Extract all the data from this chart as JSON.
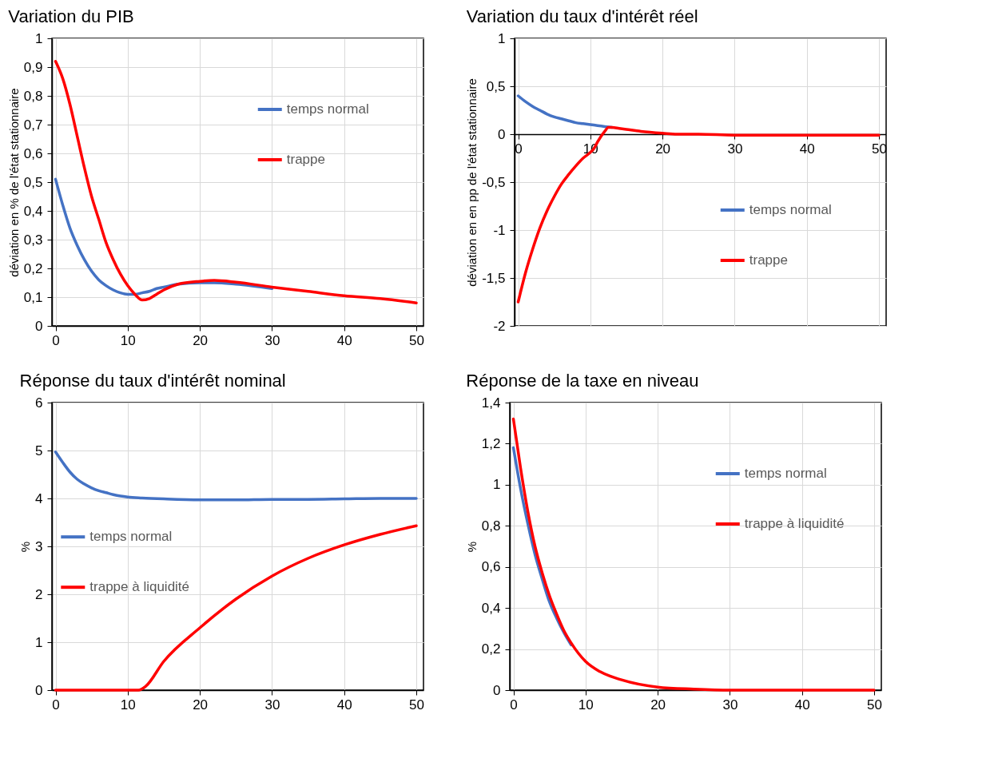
{
  "chart_data": [
    {
      "type": "line",
      "title": "Variation du PIB",
      "ylabel": "déviation en % de l'état stationnaire",
      "xlim": [
        -0.5,
        51
      ],
      "xticks": [
        0,
        10,
        20,
        30,
        40,
        50
      ],
      "ylim": [
        0,
        1
      ],
      "yticks": [
        0,
        {
          "value": 0.1,
          "label": "0,1"
        },
        {
          "value": 0.2,
          "label": "0,2"
        },
        {
          "value": 0.3,
          "label": "0,3"
        },
        {
          "value": 0.4,
          "label": "0,4"
        },
        {
          "value": 0.5,
          "label": "0,5"
        },
        {
          "value": 0.6,
          "label": "0,6"
        },
        {
          "value": 0.7,
          "label": "0,7"
        },
        {
          "value": 0.8,
          "label": "0,8"
        },
        {
          "value": 0.9,
          "label": "0,9"
        },
        1
      ],
      "grid": true,
      "legend": "top right",
      "line_style": "solid",
      "marker": "none",
      "series": [
        {
          "name": "temps normal",
          "color": "#4472c4",
          "x": [
            0,
            1,
            2,
            3,
            4,
            5,
            6,
            7,
            8,
            9,
            10,
            11,
            12,
            13,
            14,
            15,
            17,
            20,
            22,
            25,
            30
          ],
          "values": [
            0.51,
            0.42,
            0.34,
            0.28,
            0.23,
            0.19,
            0.16,
            0.14,
            0.125,
            0.115,
            0.11,
            0.11,
            0.115,
            0.12,
            0.13,
            0.135,
            0.145,
            0.15,
            0.15,
            0.145,
            0.13
          ]
        },
        {
          "name": "trappe",
          "color": "#ff0000",
          "x": [
            0,
            1,
            2,
            3,
            4,
            5,
            6,
            7,
            8,
            9,
            10,
            11,
            12,
            13,
            14,
            15,
            17,
            20,
            22,
            25,
            30,
            35,
            40,
            45,
            50
          ],
          "values": [
            0.92,
            0.86,
            0.77,
            0.66,
            0.55,
            0.45,
            0.37,
            0.29,
            0.23,
            0.18,
            0.14,
            0.11,
            0.09,
            0.095,
            0.11,
            0.125,
            0.145,
            0.155,
            0.158,
            0.152,
            0.135,
            0.12,
            0.105,
            0.095,
            0.08
          ]
        }
      ]
    },
    {
      "type": "line",
      "title": "Variation du taux d'intérêt réel",
      "ylabel": "déviation en en pp de l'état stationnaire",
      "xlim": [
        -0.5,
        51
      ],
      "xticks": [
        0,
        10,
        20,
        30,
        40,
        50
      ],
      "ylim": [
        -2,
        1
      ],
      "yticks": [
        -2,
        {
          "value": -1.5,
          "label": "-1,5"
        },
        -1,
        {
          "value": -0.5,
          "label": "-0,5"
        },
        0,
        {
          "value": 0.5,
          "label": "0,5"
        },
        1
      ],
      "grid": true,
      "legend": "right",
      "line_style": "solid",
      "marker": "none",
      "series": [
        {
          "name": "temps normal",
          "color": "#4472c4",
          "x": [
            0,
            1,
            2,
            3,
            4,
            5,
            6,
            7,
            8,
            9,
            10,
            11,
            12,
            13
          ],
          "values": [
            0.4,
            0.34,
            0.29,
            0.25,
            0.21,
            0.18,
            0.16,
            0.14,
            0.12,
            0.11,
            0.1,
            0.09,
            0.08,
            0.07
          ]
        },
        {
          "name": "trappe",
          "color": "#ff0000",
          "x": [
            0,
            1,
            2,
            3,
            4,
            5,
            6,
            7,
            8,
            9,
            10,
            10.5,
            11,
            12,
            12.5,
            13,
            14,
            15,
            17,
            20,
            22,
            25,
            30,
            35,
            40,
            45,
            50
          ],
          "values": [
            -1.75,
            -1.45,
            -1.2,
            -0.98,
            -0.8,
            -0.65,
            -0.52,
            -0.42,
            -0.33,
            -0.25,
            -0.19,
            -0.15,
            -0.08,
            0.03,
            0.07,
            0.07,
            0.06,
            0.05,
            0.03,
            0.01,
            0,
            0,
            -0.01,
            -0.01,
            -0.01,
            -0.01,
            -0.01
          ]
        }
      ]
    },
    {
      "type": "line",
      "title": "Réponse du taux d'intérêt nominal",
      "ylabel": "%",
      "xlim": [
        -0.5,
        51
      ],
      "xticks": [
        0,
        10,
        20,
        30,
        40,
        50
      ],
      "ylim": [
        0,
        6
      ],
      "yticks": [
        0,
        1,
        2,
        3,
        4,
        5,
        6
      ],
      "grid": true,
      "legend": "left",
      "line_style": "solid",
      "marker": "none",
      "series": [
        {
          "name": "temps normal",
          "color": "#4472c4",
          "x": [
            0,
            1,
            2,
            3,
            4,
            5,
            6,
            7,
            8,
            9,
            10,
            12,
            15,
            20,
            25,
            30,
            35,
            40,
            45,
            50
          ],
          "values": [
            4.97,
            4.75,
            4.55,
            4.4,
            4.3,
            4.22,
            4.16,
            4.12,
            4.08,
            4.05,
            4.03,
            4.01,
            3.99,
            3.97,
            3.97,
            3.98,
            3.98,
            3.99,
            4,
            4
          ]
        },
        {
          "name": "trappe à liquidité",
          "color": "#ff0000",
          "x": [
            0,
            5,
            10,
            11.5,
            12.5,
            15,
            20,
            25,
            30,
            35,
            40,
            45,
            50
          ],
          "values": [
            0,
            0,
            0,
            0,
            0.08,
            0.6,
            1.3,
            1.9,
            2.38,
            2.75,
            3.03,
            3.25,
            3.43
          ]
        }
      ]
    },
    {
      "type": "line",
      "title": "Réponse de la taxe en niveau",
      "ylabel": "%",
      "xlim": [
        -0.5,
        51
      ],
      "xticks": [
        0,
        10,
        20,
        30,
        40,
        50
      ],
      "ylim": [
        0,
        1.4
      ],
      "yticks": [
        0,
        {
          "value": 0.2,
          "label": "0,2"
        },
        {
          "value": 0.4,
          "label": "0,4"
        },
        {
          "value": 0.6,
          "label": "0,6"
        },
        {
          "value": 0.8,
          "label": "0,8"
        },
        1,
        {
          "value": 1.2,
          "label": "1,2"
        },
        {
          "value": 1.4,
          "label": "1,4"
        }
      ],
      "grid": true,
      "legend": "top right",
      "line_style": "solid",
      "marker": "none",
      "series": [
        {
          "name": "temps normal",
          "color": "#4472c4",
          "x": [
            0,
            1,
            2,
            3,
            4,
            5,
            6,
            7,
            8
          ],
          "values": [
            1.18,
            0.98,
            0.81,
            0.66,
            0.54,
            0.43,
            0.35,
            0.28,
            0.22
          ]
        },
        {
          "name": "trappe à liquidité",
          "color": "#ff0000",
          "x": [
            0,
            1,
            2,
            3,
            4,
            5,
            6,
            7,
            8,
            9,
            10,
            12,
            15,
            20,
            25,
            30,
            40,
            50
          ],
          "values": [
            1.32,
            1.08,
            0.87,
            0.7,
            0.57,
            0.46,
            0.37,
            0.29,
            0.23,
            0.18,
            0.14,
            0.09,
            0.05,
            0.015,
            0.005,
            0,
            0,
            0
          ]
        }
      ]
    }
  ]
}
